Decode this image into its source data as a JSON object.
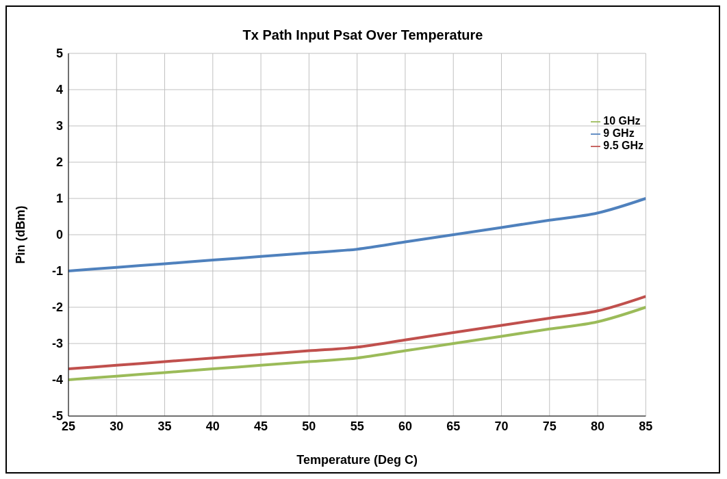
{
  "chart_data": {
    "type": "line",
    "title": "Tx Path Input Psat Over Temperature",
    "xlabel": "Temperature (Deg C)",
    "ylabel": "Pin (dBm)",
    "x": [
      25,
      30,
      35,
      40,
      45,
      50,
      55,
      60,
      65,
      70,
      75,
      80,
      85
    ],
    "series": [
      {
        "name": "9 GHz",
        "color": "#4f81bd",
        "values": [
          -1,
          -0.9,
          -0.8,
          -0.7,
          -0.6,
          -0.5,
          -0.4,
          -0.2,
          0,
          0.2,
          0.4,
          0.6,
          1
        ]
      },
      {
        "name": "9.5 GHz",
        "color": "#c0504d",
        "values": [
          -3.7,
          -3.6,
          -3.5,
          -3.4,
          -3.3,
          -3.2,
          -3.1,
          -2.9,
          -2.7,
          -2.5,
          -2.3,
          -2.1,
          -1.7
        ]
      },
      {
        "name": "10 GHz",
        "color": "#9bbb59",
        "values": [
          -4,
          -3.9,
          -3.8,
          -3.7,
          -3.6,
          -3.5,
          -3.4,
          -3.2,
          -3,
          -2.8,
          -2.6,
          -2.4,
          -2
        ]
      }
    ],
    "xlim": [
      25,
      85
    ],
    "xticks": [
      25,
      30,
      35,
      40,
      45,
      50,
      55,
      60,
      65,
      70,
      75,
      80,
      85
    ],
    "ylim": [
      -5,
      5
    ],
    "yticks": [
      -5,
      -4,
      -3,
      -2,
      -1,
      0,
      1,
      2,
      3,
      4,
      5
    ],
    "grid": true,
    "legend": "top right",
    "marker": "none",
    "line_style": "solid"
  }
}
